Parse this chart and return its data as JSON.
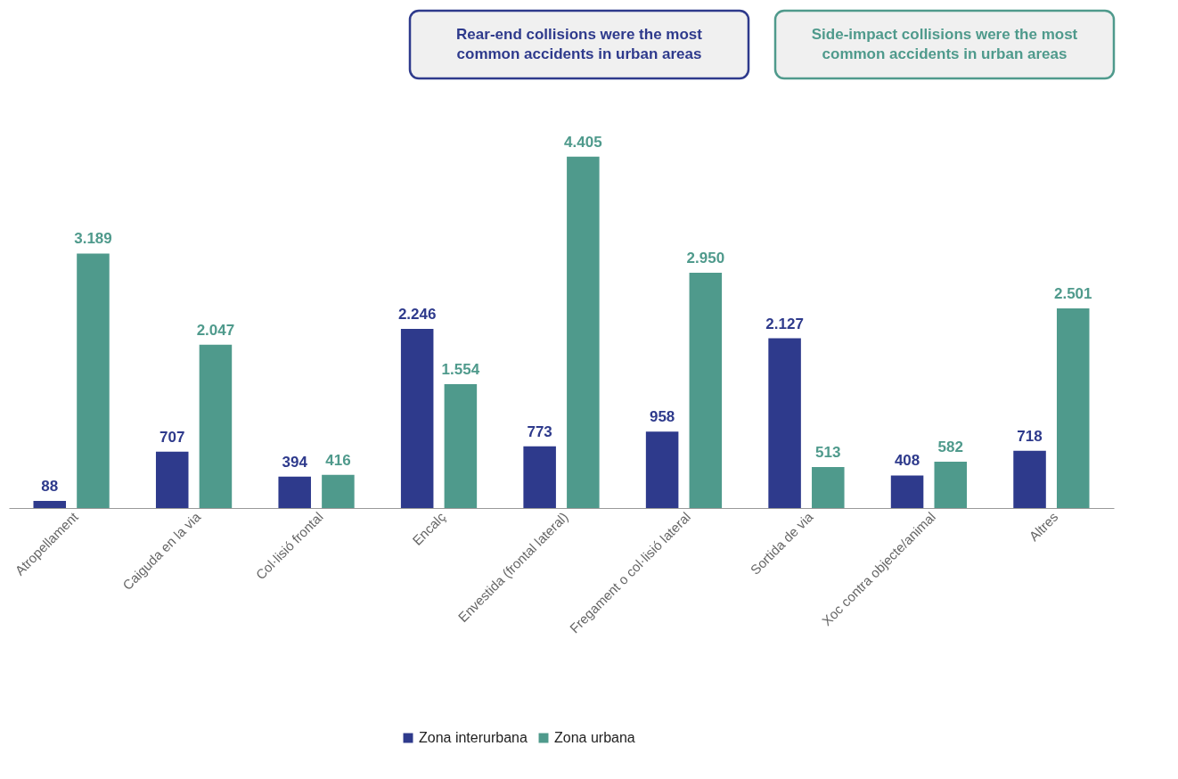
{
  "chart_data": {
    "type": "bar",
    "categories": [
      "Atropellament",
      "Caiguda en la via",
      "Col·lisió frontal",
      "Encalç",
      "Envestida (frontal lateral)",
      "Fregament o col·lisió lateral",
      "Sortida de via",
      "Xoc contra objecte/animal",
      "Altres"
    ],
    "series": [
      {
        "name": "Zona interurbana",
        "color": "#2e3a8c",
        "values": [
          88,
          707,
          394,
          2246,
          773,
          958,
          2127,
          408,
          718
        ],
        "value_labels": [
          "88",
          "707",
          "394",
          "2.246",
          "773",
          "958",
          "2.127",
          "408",
          "718"
        ]
      },
      {
        "name": "Zona urbana",
        "color": "#4f9a8c",
        "values": [
          3189,
          2047,
          416,
          1554,
          4405,
          2950,
          513,
          582,
          2501
        ],
        "value_labels": [
          "3.189",
          "2.047",
          "416",
          "1.554",
          "4.405",
          "2.950",
          "513",
          "582",
          "2.501"
        ]
      }
    ],
    "annotations": [
      "Rear-end collisions were the most common accidents in urban areas",
      "Side-impact collisions were the most common accidents in urban areas"
    ],
    "legend": "bottom",
    "grid": false
  }
}
